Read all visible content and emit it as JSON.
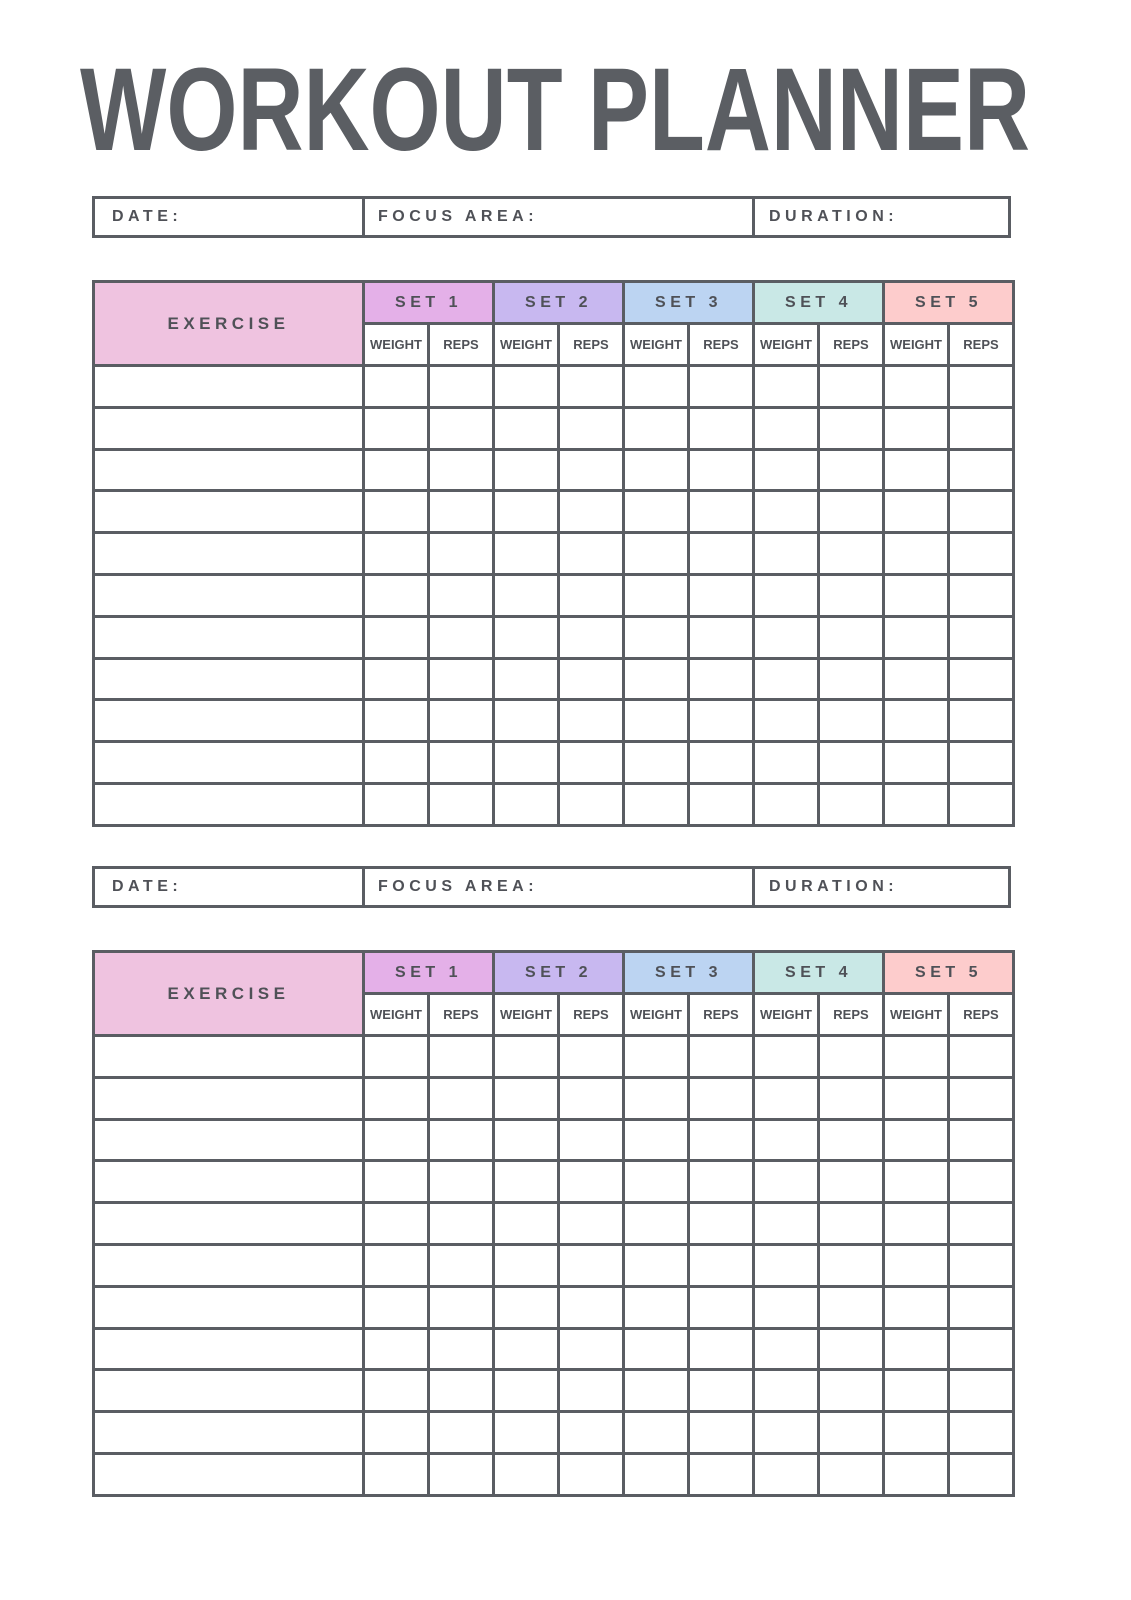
{
  "title": "WORKOUT PLANNER",
  "colors": {
    "line": "#5a5d63",
    "exercise": "#efc3e0",
    "sets": [
      "#e4b0e8",
      "#c8b8f0",
      "#bcd4f2",
      "#c9e8e6",
      "#fdcccc"
    ]
  },
  "info": {
    "date": "DATE:",
    "focus": "FOCUS AREA:",
    "duration": "DURATION:"
  },
  "table": {
    "exercise_label": "EXERCISE",
    "sets": [
      "SET 1",
      "SET 2",
      "SET 3",
      "SET 4",
      "SET 5"
    ],
    "weight_label": "WEIGHT",
    "reps_label": "REPS",
    "row_count": 11
  },
  "sections": [
    {},
    {}
  ]
}
